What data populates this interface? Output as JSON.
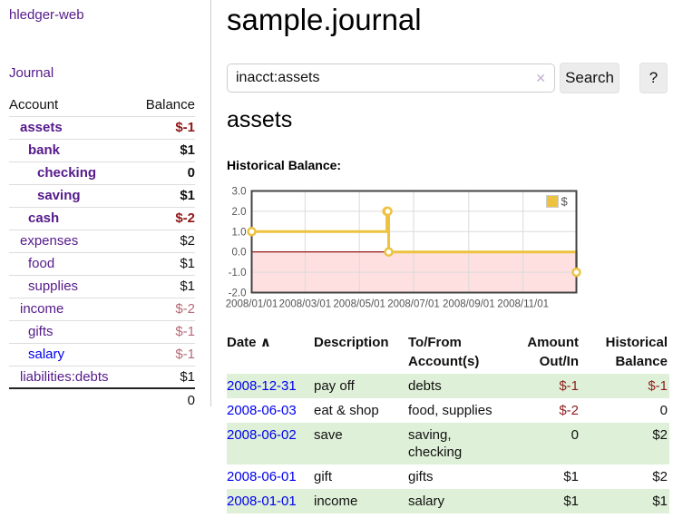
{
  "sidebar": {
    "brand": "hledger-web",
    "journal_link": "Journal",
    "accounts_header": {
      "account": "Account",
      "balance": "Balance"
    },
    "accounts": [
      {
        "name": "assets",
        "depth": 1,
        "balance": "$-1",
        "bold": true,
        "neg": "strong",
        "link": "purple"
      },
      {
        "name": "bank",
        "depth": 2,
        "balance": "$1",
        "bold": true,
        "neg": "none",
        "link": "purple"
      },
      {
        "name": "checking",
        "depth": 3,
        "balance": "0",
        "bold": true,
        "neg": "none",
        "link": "purple"
      },
      {
        "name": "saving",
        "depth": 3,
        "balance": "$1",
        "bold": true,
        "neg": "none",
        "link": "purple"
      },
      {
        "name": "cash",
        "depth": 2,
        "balance": "$-2",
        "bold": true,
        "neg": "strong",
        "link": "purple"
      },
      {
        "name": "expenses",
        "depth": 1,
        "balance": "$2",
        "bold": false,
        "neg": "none",
        "link": "purple"
      },
      {
        "name": "food",
        "depth": 2,
        "balance": "$1",
        "bold": false,
        "neg": "none",
        "link": "purple"
      },
      {
        "name": "supplies",
        "depth": 2,
        "balance": "$1",
        "bold": false,
        "neg": "none",
        "link": "purple"
      },
      {
        "name": "income",
        "depth": 1,
        "balance": "$-2",
        "bold": false,
        "neg": "soft",
        "link": "purple"
      },
      {
        "name": "gifts",
        "depth": 2,
        "balance": "$-1",
        "bold": false,
        "neg": "soft",
        "link": "purple"
      },
      {
        "name": "salary",
        "depth": 2,
        "balance": "$-1",
        "bold": false,
        "neg": "soft",
        "link": "blue"
      },
      {
        "name": "liabilities:debts",
        "depth": 1,
        "balance": "$1",
        "bold": false,
        "neg": "none",
        "link": "purple"
      }
    ],
    "total": "0"
  },
  "main": {
    "title": "sample.journal",
    "search": {
      "value": "inacct:assets",
      "clear_icon": "✕",
      "search_button": "Search",
      "help_button": "?"
    },
    "account_heading": "assets",
    "chart_label": "Historical Balance:"
  },
  "chart_data": {
    "type": "line",
    "title": "Historical Balance:",
    "step": true,
    "series": [
      {
        "name": "$",
        "color": "#edc240",
        "points": [
          [
            "2008/01/01",
            1
          ],
          [
            "2008/06/01",
            2
          ],
          [
            "2008/06/02",
            2
          ],
          [
            "2008/06/03",
            0
          ],
          [
            "2008/12/31",
            -1
          ]
        ]
      }
    ],
    "x_range": [
      "2008/01/01",
      "2008/12/31"
    ],
    "x_ticks": [
      "2008/01/01",
      "2008/03/01",
      "2008/05/01",
      "2008/07/01",
      "2008/09/01",
      "2008/11/01"
    ],
    "y_range": [
      -2,
      3
    ],
    "y_ticks": [
      3.0,
      2.0,
      1.0,
      0.0,
      -1.0,
      -2.0
    ],
    "legend": {
      "label": "$",
      "position": "top-right"
    },
    "grid": true,
    "colors": {
      "line": "#edc240",
      "marker_fill": "#ffffff",
      "negative_region": "rgba(255,0,0,0.12)",
      "zero_line": "#8b0000",
      "border": "#434343",
      "gridline": "#dadada",
      "tick_text": "#545454"
    }
  },
  "register": {
    "headers": {
      "date": "Date",
      "description": "Description",
      "accounts": "To/From Account(s)",
      "amount": "Amount Out/In",
      "balance": "Historical Balance"
    },
    "sort_icon": "∧",
    "rows": [
      {
        "date": "2008-12-31",
        "description": "pay off",
        "accounts": "debts",
        "amount": "$-1",
        "amount_neg": true,
        "balance": "$-1",
        "balance_neg": true,
        "green": true
      },
      {
        "date": "2008-06-03",
        "description": "eat & shop",
        "accounts": "food, supplies",
        "amount": "$-2",
        "amount_neg": true,
        "balance": "0",
        "balance_neg": false,
        "green": false
      },
      {
        "date": "2008-06-02",
        "description": "save",
        "accounts": "saving, checking",
        "amount": "0",
        "amount_neg": false,
        "balance": "$2",
        "balance_neg": false,
        "green": true
      },
      {
        "date": "2008-06-01",
        "description": "gift",
        "accounts": "gifts",
        "amount": "$1",
        "amount_neg": false,
        "balance": "$2",
        "balance_neg": false,
        "green": false
      },
      {
        "date": "2008-01-01",
        "description": "income",
        "accounts": "salary",
        "amount": "$1",
        "amount_neg": false,
        "balance": "$1",
        "balance_neg": false,
        "green": true
      }
    ]
  }
}
